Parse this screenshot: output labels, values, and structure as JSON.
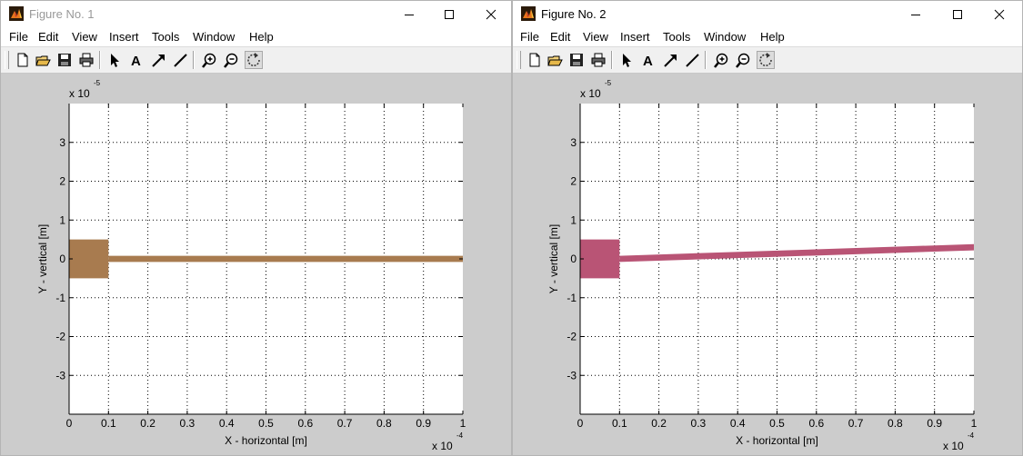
{
  "menu_labels": [
    "File",
    "Edit",
    "View",
    "Insert",
    "Tools",
    "Window",
    "Help"
  ],
  "toolbar_icons": [
    "new-figure-icon",
    "open-file-icon",
    "save-icon",
    "print-icon",
    "edit-plot-arrow-icon",
    "insert-text-icon",
    "insert-arrow-icon",
    "insert-line-icon",
    "zoom-in-icon",
    "zoom-out-icon",
    "rotate-3d-icon"
  ],
  "windows": [
    {
      "title": "Figure No. 1",
      "active": false,
      "menu": [
        "File",
        "Edit",
        "View",
        "Insert",
        "Tools",
        "Window",
        "Help"
      ],
      "beam_color": "#a87b4f"
    },
    {
      "title": "Figure No. 2",
      "active": true,
      "menu": [
        "File",
        "Edit",
        "View",
        "Insert",
        "Tools",
        "Window",
        "Help"
      ],
      "beam_color": "#b95475"
    }
  ],
  "chart_data": [
    {
      "type": "area",
      "xlabel": "X - horizontal  [m]",
      "ylabel": "Y - vertical  [m]",
      "x_multiplier_label": "x 10",
      "x_multiplier_exp": "-4",
      "y_multiplier_label": "x 10",
      "y_multiplier_exp": "-5",
      "xlim": [
        0,
        1
      ],
      "ylim": [
        -4,
        4
      ],
      "xticks": [
        0,
        0.1,
        0.2,
        0.3,
        0.4,
        0.5,
        0.6,
        0.7,
        0.8,
        0.9,
        1
      ],
      "xtick_labels": [
        "0",
        "0.1",
        "0.2",
        "0.3",
        "0.4",
        "0.5",
        "0.6",
        "0.7",
        "0.8",
        "0.9",
        "1"
      ],
      "yticks": [
        -3,
        -2,
        -1,
        0,
        1,
        2,
        3
      ],
      "ytick_labels": [
        "-3",
        "-2",
        "-1",
        "0",
        "1",
        "2",
        "3"
      ],
      "grid": true,
      "series": [
        {
          "color": "#a87b4f",
          "anchor": {
            "x": [
              0,
              0.1
            ],
            "y": [
              -0.5,
              0.5
            ]
          },
          "beam": {
            "x": [
              0.1,
              1
            ],
            "y_center": [
              0,
              0
            ],
            "half_thickness": 0.08
          }
        }
      ]
    },
    {
      "type": "area",
      "xlabel": "X - horizontal  [m]",
      "ylabel": "Y - vertical  [m]",
      "x_multiplier_label": "x 10",
      "x_multiplier_exp": "-4",
      "y_multiplier_label": "x 10",
      "y_multiplier_exp": "-5",
      "xlim": [
        0,
        1
      ],
      "ylim": [
        -4,
        4
      ],
      "xticks": [
        0,
        0.1,
        0.2,
        0.3,
        0.4,
        0.5,
        0.6,
        0.7,
        0.8,
        0.9,
        1
      ],
      "xtick_labels": [
        "0",
        "0.1",
        "0.2",
        "0.3",
        "0.4",
        "0.5",
        "0.6",
        "0.7",
        "0.8",
        "0.9",
        "1"
      ],
      "yticks": [
        -3,
        -2,
        -1,
        0,
        1,
        2,
        3
      ],
      "ytick_labels": [
        "-3",
        "-2",
        "-1",
        "0",
        "1",
        "2",
        "3"
      ],
      "grid": true,
      "series": [
        {
          "color": "#b95475",
          "anchor": {
            "x": [
              0,
              0.1
            ],
            "y": [
              -0.5,
              0.5
            ]
          },
          "beam": {
            "x": [
              0.1,
              1
            ],
            "y_center": [
              0,
              0.3
            ],
            "half_thickness": 0.08
          }
        }
      ]
    }
  ]
}
